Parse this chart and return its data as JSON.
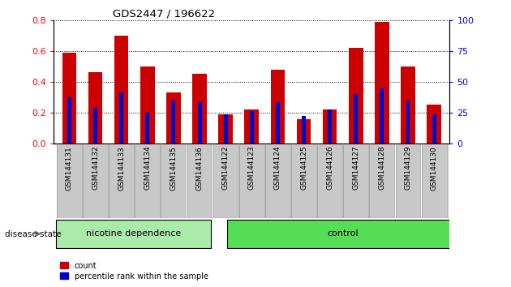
{
  "title": "GDS2447 / 196622",
  "categories": [
    "GSM144131",
    "GSM144132",
    "GSM144133",
    "GSM144134",
    "GSM144135",
    "GSM144136",
    "GSM144122",
    "GSM144123",
    "GSM144124",
    "GSM144125",
    "GSM144126",
    "GSM144127",
    "GSM144128",
    "GSM144129",
    "GSM144130"
  ],
  "count_values": [
    0.59,
    0.46,
    0.7,
    0.5,
    0.33,
    0.45,
    0.19,
    0.22,
    0.48,
    0.16,
    0.22,
    0.62,
    0.79,
    0.5,
    0.25
  ],
  "percentile_values": [
    0.3,
    0.23,
    0.33,
    0.2,
    0.28,
    0.27,
    0.19,
    0.21,
    0.27,
    0.18,
    0.22,
    0.32,
    0.36,
    0.28,
    0.19
  ],
  "group1_label": "nicotine dependence",
  "group2_label": "control",
  "group1_count": 6,
  "group2_count": 9,
  "disease_state_label": "disease state",
  "ylim_left": [
    0,
    0.8
  ],
  "ylim_right": [
    0,
    100
  ],
  "yticks_left": [
    0,
    0.2,
    0.4,
    0.6,
    0.8
  ],
  "yticks_right": [
    0,
    25,
    50,
    75,
    100
  ],
  "count_color": "#cc0000",
  "percentile_color": "#0000cc",
  "group1_bg": "#aaeaaa",
  "group2_bg": "#55dd55",
  "bar_bg": "#c8c8c8",
  "legend_count": "count",
  "legend_percentile": "percentile rank within the sample",
  "bar_width": 0.55
}
